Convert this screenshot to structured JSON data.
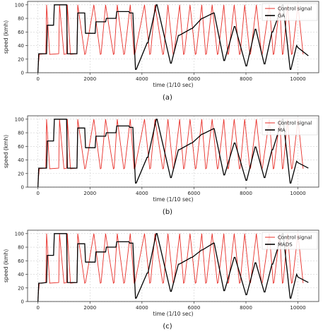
{
  "panels": [
    "(a)",
    "(b)",
    "(c)"
  ],
  "chart_data": [
    {
      "type": "line",
      "panel_label": "(a)",
      "xlabel": "time (1/10 sec)",
      "ylabel": "speed (kmh)",
      "xlim": [
        -400,
        10800
      ],
      "ylim": [
        0,
        105
      ],
      "xticks": [
        0,
        2000,
        4000,
        6000,
        8000,
        10000
      ],
      "yticks": [
        0,
        20,
        40,
        60,
        80,
        100
      ],
      "grid": true,
      "legend_position": "top-right",
      "series": [
        {
          "name": "Control signal",
          "color": "#e8302a",
          "x": [
            0,
            50,
            300,
            330,
            450,
            800,
            830,
            1000,
            1100,
            1130,
            1250,
            1500,
            1530,
            1800,
            1830,
            2150,
            2400,
            2430,
            2600,
            2900,
            2930,
            3050,
            3300,
            3330,
            3550,
            3700,
            3730,
            4100,
            4300,
            4330,
            4500,
            4800,
            4830,
            5000,
            5200,
            5230,
            5450,
            5600,
            5630,
            5850,
            6050,
            6080,
            6300,
            6450,
            6480,
            6700,
            6900,
            6930,
            7150,
            7300,
            7330,
            7550,
            7750,
            7780,
            7950,
            8150,
            8180,
            8400,
            8600,
            8630,
            8900,
            9050,
            9080,
            9300,
            9400,
            9430,
            9600,
            9750,
            9780,
            10000,
            10200
          ],
          "y": [
            5,
            27,
            28,
            100,
            27,
            28,
            100,
            27,
            28,
            100,
            27,
            28,
            100,
            27,
            28,
            100,
            27,
            28,
            100,
            27,
            28,
            100,
            27,
            28,
            100,
            27,
            28,
            100,
            27,
            28,
            100,
            27,
            28,
            100,
            27,
            28,
            100,
            27,
            28,
            100,
            27,
            28,
            100,
            27,
            28,
            100,
            27,
            28,
            100,
            27,
            28,
            100,
            27,
            28,
            100,
            27,
            28,
            100,
            27,
            28,
            100,
            27,
            28,
            100,
            27,
            28,
            100,
            27,
            28,
            100,
            27
          ]
        },
        {
          "name": "GA",
          "color": "#000000",
          "x": [
            0,
            30,
            120,
            330,
            360,
            600,
            630,
            1100,
            1130,
            1500,
            1530,
            1800,
            1830,
            2200,
            2230,
            2600,
            2630,
            3000,
            3030,
            3500,
            3530,
            3650,
            3750,
            3780,
            4200,
            4230,
            4550,
            4580,
            5100,
            5130,
            5400,
            5430,
            5900,
            5930,
            6300,
            6330,
            6750,
            6780,
            7150,
            7180,
            7550,
            7580,
            8000,
            8030,
            8350,
            8380,
            8700,
            8730,
            9000,
            9030,
            9400,
            9430,
            9700,
            9730,
            9950,
            10000,
            10400
          ],
          "y": [
            0,
            28,
            28,
            28,
            70,
            70,
            100,
            100,
            28,
            28,
            88,
            88,
            58,
            58,
            75,
            75,
            80,
            80,
            90,
            90,
            88,
            88,
            5,
            5,
            44,
            44,
            100,
            100,
            14,
            14,
            55,
            55,
            65,
            65,
            80,
            80,
            88,
            88,
            18,
            18,
            68,
            68,
            10,
            10,
            64,
            64,
            13,
            13,
            60,
            60,
            100,
            100,
            5,
            5,
            40,
            37,
            25
          ]
        }
      ]
    },
    {
      "type": "line",
      "panel_label": "(b)",
      "xlabel": "time (1/10 sec)",
      "ylabel": "speed (kmh)",
      "xlim": [
        -400,
        10800
      ],
      "ylim": [
        0,
        105
      ],
      "xticks": [
        0,
        2000,
        4000,
        6000,
        8000,
        10000
      ],
      "yticks": [
        0,
        20,
        40,
        60,
        80,
        100
      ],
      "grid": true,
      "legend_position": "top-right",
      "series": [
        {
          "name": "Control signal",
          "color": "#e8302a",
          "x": [
            0,
            50,
            300,
            330,
            450,
            800,
            830,
            1000,
            1100,
            1130,
            1250,
            1500,
            1530,
            1800,
            1830,
            2150,
            2400,
            2430,
            2600,
            2900,
            2930,
            3050,
            3300,
            3330,
            3550,
            3700,
            3730,
            4100,
            4300,
            4330,
            4500,
            4800,
            4830,
            5000,
            5200,
            5230,
            5450,
            5600,
            5630,
            5850,
            6050,
            6080,
            6300,
            6450,
            6480,
            6700,
            6900,
            6930,
            7150,
            7300,
            7330,
            7550,
            7750,
            7780,
            7950,
            8150,
            8180,
            8400,
            8600,
            8630,
            8900,
            9050,
            9080,
            9300,
            9400,
            9430,
            9600,
            9750,
            9780,
            10000,
            10200
          ],
          "y": [
            5,
            27,
            28,
            100,
            27,
            28,
            100,
            27,
            28,
            100,
            27,
            28,
            100,
            27,
            28,
            100,
            27,
            28,
            100,
            27,
            28,
            100,
            27,
            28,
            100,
            27,
            28,
            100,
            27,
            28,
            100,
            27,
            28,
            100,
            27,
            28,
            100,
            27,
            28,
            100,
            27,
            28,
            100,
            27,
            28,
            100,
            27,
            28,
            100,
            27,
            28,
            100,
            27,
            28,
            100,
            27,
            28,
            100,
            27,
            28,
            100,
            27,
            28,
            100,
            27,
            28,
            100,
            27,
            28,
            100,
            27
          ]
        },
        {
          "name": "MA",
          "color": "#000000",
          "x": [
            0,
            30,
            120,
            330,
            360,
            600,
            630,
            1100,
            1130,
            1500,
            1530,
            1800,
            1830,
            2200,
            2230,
            2600,
            2630,
            3000,
            3030,
            3500,
            3530,
            3650,
            3750,
            3780,
            4200,
            4230,
            4550,
            4580,
            5100,
            5130,
            5400,
            5430,
            5900,
            5930,
            6300,
            6330,
            6750,
            6780,
            7150,
            7180,
            7550,
            7580,
            8000,
            8030,
            8350,
            8380,
            8700,
            8730,
            9000,
            9030,
            9400,
            9430,
            9700,
            9730,
            9950,
            10000,
            10400
          ],
          "y": [
            0,
            28,
            28,
            28,
            68,
            68,
            100,
            100,
            28,
            28,
            87,
            87,
            58,
            58,
            75,
            75,
            80,
            80,
            90,
            90,
            88,
            88,
            6,
            6,
            44,
            44,
            100,
            100,
            14,
            14,
            55,
            55,
            65,
            65,
            78,
            78,
            86,
            86,
            18,
            18,
            65,
            65,
            10,
            10,
            59,
            59,
            14,
            14,
            55,
            55,
            100,
            100,
            6,
            6,
            38,
            36,
            28
          ]
        }
      ]
    },
    {
      "type": "line",
      "panel_label": "(c)",
      "xlabel": "time (1/10 sec)",
      "ylabel": "speed (kmh)",
      "xlim": [
        -400,
        10800
      ],
      "ylim": [
        0,
        105
      ],
      "xticks": [
        0,
        2000,
        4000,
        6000,
        8000,
        10000
      ],
      "yticks": [
        0,
        20,
        40,
        60,
        80,
        100
      ],
      "grid": true,
      "legend_position": "top-right",
      "series": [
        {
          "name": "Control signal",
          "color": "#e8302a",
          "x": [
            0,
            50,
            300,
            330,
            450,
            800,
            830,
            1000,
            1100,
            1130,
            1250,
            1500,
            1530,
            1800,
            1830,
            2150,
            2400,
            2430,
            2600,
            2900,
            2930,
            3050,
            3300,
            3330,
            3550,
            3700,
            3730,
            4100,
            4300,
            4330,
            4500,
            4800,
            4830,
            5000,
            5200,
            5230,
            5450,
            5600,
            5630,
            5850,
            6050,
            6080,
            6300,
            6450,
            6480,
            6700,
            6900,
            6930,
            7150,
            7300,
            7330,
            7550,
            7750,
            7780,
            7950,
            8150,
            8180,
            8400,
            8600,
            8630,
            8900,
            9050,
            9080,
            9300,
            9400,
            9430,
            9600,
            9750,
            9780,
            10000,
            10200
          ],
          "y": [
            5,
            27,
            28,
            100,
            27,
            28,
            100,
            27,
            28,
            100,
            27,
            28,
            100,
            27,
            28,
            100,
            27,
            28,
            100,
            27,
            28,
            100,
            27,
            28,
            100,
            27,
            28,
            100,
            27,
            28,
            100,
            27,
            28,
            100,
            27,
            28,
            100,
            27,
            28,
            100,
            27,
            28,
            100,
            27,
            28,
            100,
            27,
            28,
            100,
            27,
            28,
            100,
            27,
            28,
            100,
            27,
            28,
            100,
            27,
            28,
            100,
            27,
            28,
            100,
            27,
            28,
            100,
            27,
            28,
            100,
            27
          ]
        },
        {
          "name": "MADS",
          "color": "#000000",
          "x": [
            0,
            30,
            120,
            330,
            360,
            600,
            630,
            1100,
            1130,
            1500,
            1530,
            1800,
            1830,
            2200,
            2230,
            2600,
            2630,
            3000,
            3030,
            3500,
            3530,
            3650,
            3750,
            3780,
            4200,
            4230,
            4550,
            4580,
            5100,
            5130,
            5400,
            5430,
            5900,
            5930,
            6300,
            6330,
            6750,
            6780,
            7150,
            7180,
            7550,
            7580,
            8000,
            8030,
            8350,
            8380,
            8700,
            8730,
            9000,
            9030,
            9400,
            9430,
            9700,
            9730,
            9950,
            10000,
            10400
          ],
          "y": [
            0,
            27,
            27,
            28,
            68,
            68,
            100,
            100,
            28,
            28,
            85,
            85,
            58,
            58,
            73,
            73,
            80,
            80,
            88,
            88,
            86,
            86,
            5,
            5,
            42,
            42,
            100,
            100,
            15,
            15,
            55,
            55,
            65,
            65,
            76,
            76,
            86,
            86,
            16,
            16,
            65,
            65,
            10,
            10,
            57,
            57,
            14,
            14,
            55,
            55,
            100,
            100,
            5,
            5,
            40,
            36,
            28
          ]
        }
      ]
    }
  ]
}
